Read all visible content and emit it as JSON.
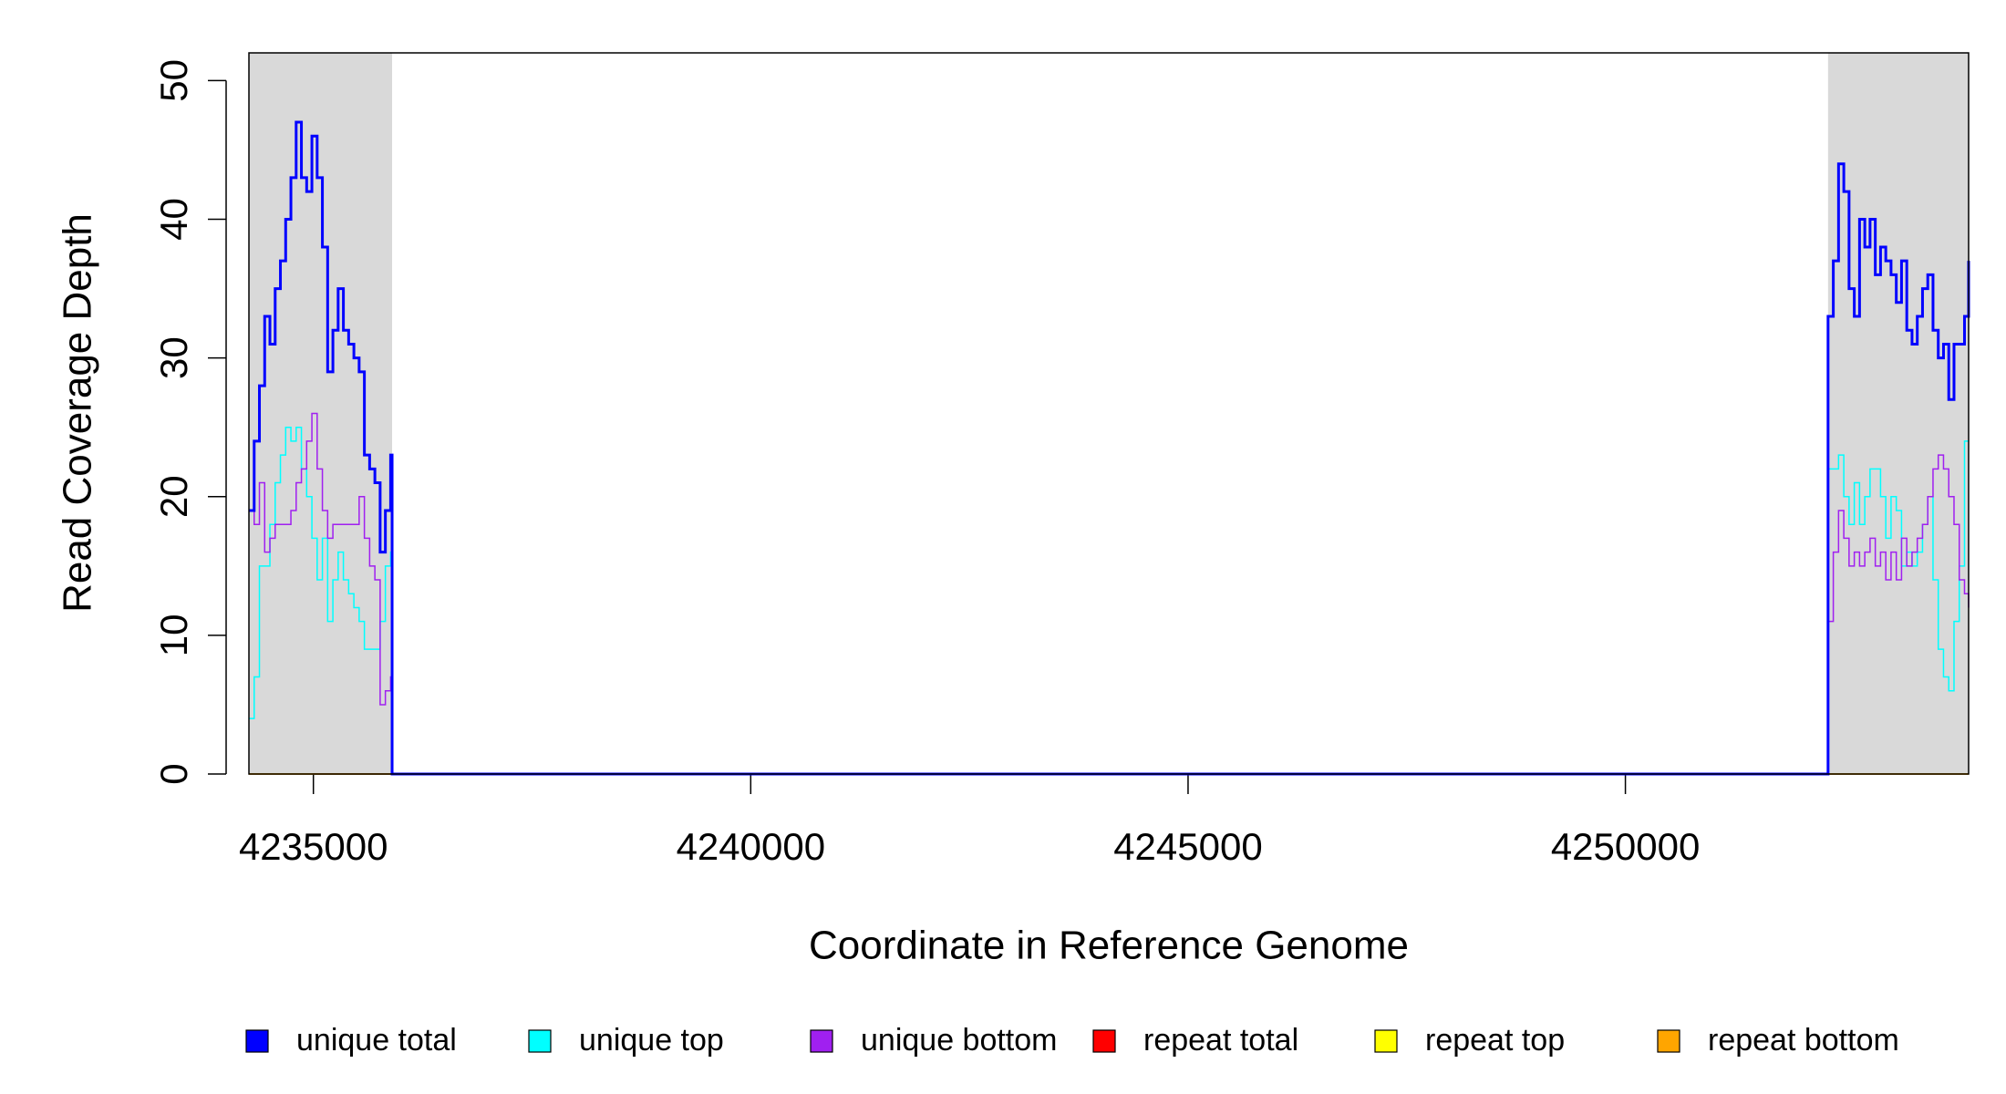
{
  "chart_data": {
    "type": "step",
    "x_label": "Coordinate in Reference Genome",
    "y_label": "Read Coverage Depth",
    "xlim": [
      4234263,
      4253924
    ],
    "ylim": [
      0,
      52
    ],
    "xticks": [
      4235000,
      4240000,
      4245000,
      4250000
    ],
    "yticks": [
      0,
      10,
      20,
      30,
      40,
      50
    ],
    "shaded_regions": [
      [
        4234263,
        4235900
      ],
      [
        4252317,
        4253924
      ]
    ],
    "shade_color": "#d9d9d9",
    "x": [
      4234263,
      4234323,
      4234383,
      4234443,
      4234503,
      4234563,
      4234623,
      4234683,
      4234743,
      4234803,
      4234863,
      4234923,
      4234983,
      4235043,
      4235103,
      4235163,
      4235223,
      4235283,
      4235343,
      4235403,
      4235463,
      4235523,
      4235583,
      4235643,
      4235703,
      4235763,
      4235823,
      4235883,
      4235900,
      4252317,
      4252377,
      4252437,
      4252497,
      4252557,
      4252617,
      4252677,
      4252737,
      4252797,
      4252857,
      4252917,
      4252977,
      4253037,
      4253097,
      4253157,
      4253217,
      4253277,
      4253337,
      4253397,
      4253457,
      4253517,
      4253577,
      4253637,
      4253697,
      4253757,
      4253817,
      4253877,
      4253924
    ],
    "series": [
      {
        "name": "repeat total",
        "color": "#ff0000",
        "width": 1.5,
        "values": [
          0,
          0,
          0,
          0,
          0,
          0,
          0,
          0,
          0,
          0,
          0,
          0,
          0,
          0,
          0,
          0,
          0,
          0,
          0,
          0,
          0,
          0,
          0,
          0,
          0,
          0,
          0,
          0,
          0,
          0,
          0,
          0,
          0,
          0,
          0,
          0,
          0,
          0,
          0,
          0,
          0,
          0,
          0,
          0,
          0,
          0,
          0,
          0,
          0,
          0,
          0,
          0,
          0,
          0,
          0,
          0,
          0
        ]
      },
      {
        "name": "repeat top",
        "color": "#ffff00",
        "width": 1.5,
        "values": [
          0,
          0,
          0,
          0,
          0,
          0,
          0,
          0,
          0,
          0,
          0,
          0,
          0,
          0,
          0,
          0,
          0,
          0,
          0,
          0,
          0,
          0,
          0,
          0,
          0,
          0,
          0,
          0,
          0,
          0,
          0,
          0,
          0,
          0,
          0,
          0,
          0,
          0,
          0,
          0,
          0,
          0,
          0,
          0,
          0,
          0,
          0,
          0,
          0,
          0,
          0,
          0,
          0,
          0,
          0,
          0,
          0
        ]
      },
      {
        "name": "repeat bottom",
        "color": "#ffa500",
        "width": 1.5,
        "values": [
          0,
          0,
          0,
          0,
          0,
          0,
          0,
          0,
          0,
          0,
          0,
          0,
          0,
          0,
          0,
          0,
          0,
          0,
          0,
          0,
          0,
          0,
          0,
          0,
          0,
          0,
          0,
          0,
          0,
          0,
          0,
          0,
          0,
          0,
          0,
          0,
          0,
          0,
          0,
          0,
          0,
          0,
          0,
          0,
          0,
          0,
          0,
          0,
          0,
          0,
          0,
          0,
          0,
          0,
          0,
          0,
          0
        ]
      },
      {
        "name": "unique top",
        "color": "#00ffff",
        "width": 1.5,
        "values": [
          4,
          7,
          15,
          15,
          18,
          21,
          23,
          25,
          24,
          25,
          22,
          20,
          17,
          14,
          17,
          11,
          14,
          16,
          14,
          13,
          12,
          11,
          9,
          9,
          9,
          11,
          15,
          16,
          0,
          22,
          22,
          23,
          20,
          18,
          21,
          18,
          20,
          22,
          22,
          20,
          17,
          20,
          19,
          15,
          16,
          15,
          16,
          18,
          20,
          14,
          9,
          7,
          6,
          11,
          15,
          24,
          24
        ]
      },
      {
        "name": "unique bottom",
        "color": "#a020f0",
        "width": 1.5,
        "values": [
          19,
          18,
          21,
          16,
          17,
          18,
          18,
          18,
          19,
          21,
          22,
          24,
          26,
          22,
          19,
          17,
          18,
          18,
          18,
          18,
          18,
          20,
          17,
          15,
          14,
          5,
          6,
          7,
          0,
          11,
          16,
          19,
          17,
          15,
          16,
          15,
          16,
          17,
          15,
          16,
          14,
          16,
          14,
          17,
          15,
          16,
          17,
          18,
          20,
          22,
          23,
          22,
          20,
          18,
          14,
          13,
          12
        ]
      },
      {
        "name": "unique total",
        "color": "#0000ff",
        "width": 3,
        "values": [
          19,
          24,
          28,
          33,
          31,
          35,
          37,
          40,
          43,
          47,
          43,
          42,
          46,
          43,
          38,
          29,
          32,
          35,
          32,
          31,
          30,
          29,
          23,
          22,
          21,
          16,
          19,
          23,
          0,
          33,
          37,
          44,
          42,
          35,
          33,
          40,
          38,
          40,
          36,
          38,
          37,
          36,
          34,
          37,
          32,
          31,
          33,
          35,
          36,
          32,
          30,
          31,
          27,
          31,
          31,
          33,
          37
        ]
      }
    ],
    "legend_order": [
      5,
      3,
      4,
      0,
      1,
      2
    ]
  }
}
